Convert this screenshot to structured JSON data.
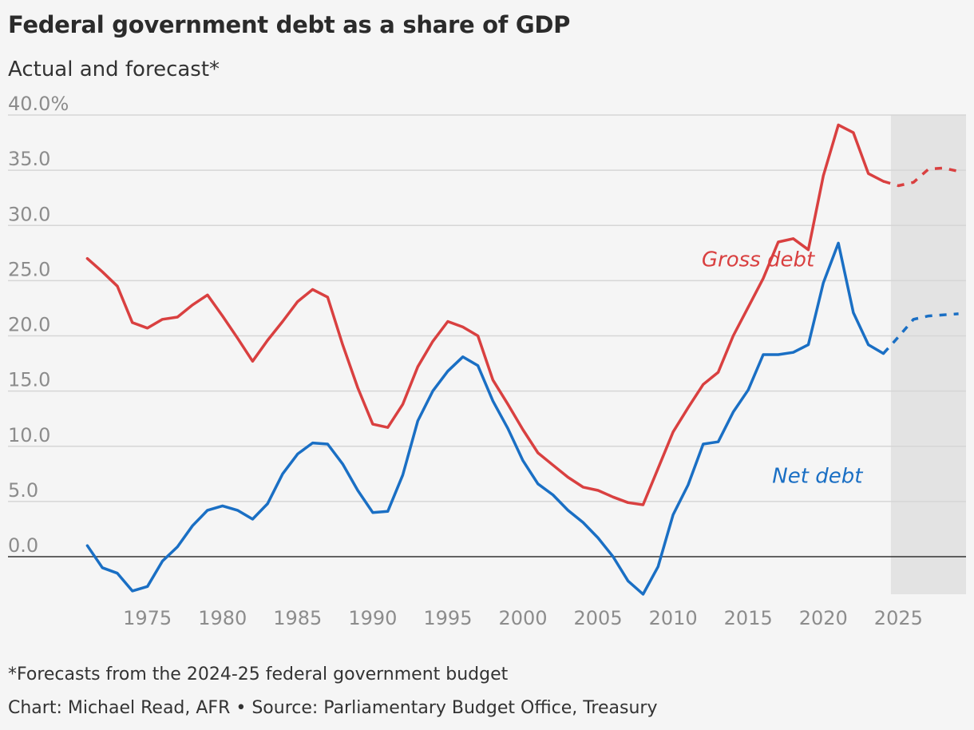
{
  "title": "Federal government debt as a share of GDP",
  "subtitle": "Actual and forecast*",
  "footnote": "*Forecasts from the 2024-25 federal government budget",
  "credit": "Chart: Michael Read, AFR • Source: Parliamentary Budget Office, Treasury",
  "colors": {
    "gross": "#d94040",
    "net": "#1a6fc4",
    "grid": "#d6d6d6",
    "forecast_shade": "#e3e3e3",
    "zero_line": "#333333",
    "tick": "#8c8c8c"
  },
  "chart_data": {
    "type": "line",
    "title": "Federal government debt as a share of GDP",
    "subtitle": "Actual and forecast*",
    "xlim": [
      1970.5,
      2029.5
    ],
    "ylim": [
      -3.5,
      40
    ],
    "x_ticks": [
      1975,
      1980,
      1985,
      1990,
      1995,
      2000,
      2005,
      2010,
      2015,
      2020,
      2025
    ],
    "x_tick_labels": [
      "1975",
      "1980",
      "1985",
      "1990",
      "1995",
      "2000",
      "2005",
      "2010",
      "2015",
      "2020",
      "2025"
    ],
    "y_ticks": [
      0,
      5,
      10,
      15,
      20,
      25,
      30,
      35,
      40
    ],
    "y_tick_labels": [
      "0.0",
      "5.0",
      "10.0",
      "15.0",
      "20.0",
      "25.0",
      "30.0",
      "35.0",
      "40.0%"
    ],
    "grid": true,
    "forecast_region": [
      2024.5,
      2029.5
    ],
    "series": [
      {
        "name": "Gross debt",
        "color": "#d94040",
        "label_position": [
          2011.9,
          26.3
        ],
        "actual": {
          "x": [
            1971,
            1972,
            1973,
            1974,
            1975,
            1976,
            1977,
            1978,
            1979,
            1980,
            1981,
            1982,
            1983,
            1984,
            1985,
            1986,
            1987,
            1988,
            1989,
            1990,
            1991,
            1992,
            1993,
            1994,
            1995,
            1996,
            1997,
            1998,
            1999,
            2000,
            2001,
            2002,
            2003,
            2004,
            2005,
            2006,
            2007,
            2008,
            2009,
            2010,
            2011,
            2012,
            2013,
            2014,
            2015,
            2016,
            2017,
            2018,
            2019,
            2020,
            2021,
            2022,
            2023,
            2024
          ],
          "y": [
            27.0,
            25.8,
            24.5,
            21.2,
            20.7,
            21.5,
            21.7,
            22.8,
            23.7,
            21.8,
            19.8,
            17.7,
            19.6,
            21.3,
            23.1,
            24.2,
            23.5,
            19.2,
            15.3,
            12.0,
            11.7,
            13.8,
            17.2,
            19.5,
            21.3,
            20.8,
            20.0,
            16.0,
            13.8,
            11.5,
            9.4,
            8.3,
            7.2,
            6.3,
            6.0,
            5.4,
            4.9,
            4.7,
            8.0,
            11.3,
            13.5,
            15.6,
            16.7,
            20.0,
            22.6,
            25.2,
            28.5,
            28.8,
            27.8,
            34.5,
            39.1,
            38.4,
            34.7,
            34.0
          ]
        },
        "forecast": {
          "x": [
            2024,
            2025,
            2026,
            2027,
            2028,
            2029
          ],
          "y": [
            34.0,
            33.6,
            33.9,
            35.1,
            35.2,
            34.9
          ]
        }
      },
      {
        "name": "Net debt",
        "color": "#1a6fc4",
        "label_position": [
          2016.6,
          6.7
        ],
        "actual": {
          "x": [
            1971,
            1972,
            1973,
            1974,
            1975,
            1976,
            1977,
            1978,
            1979,
            1980,
            1981,
            1982,
            1983,
            1984,
            1985,
            1986,
            1987,
            1988,
            1989,
            1990,
            1991,
            1992,
            1993,
            1994,
            1995,
            1996,
            1997,
            1998,
            1999,
            2000,
            2001,
            2002,
            2003,
            2004,
            2005,
            2006,
            2007,
            2008,
            2009,
            2010,
            2011,
            2012,
            2013,
            2014,
            2015,
            2016,
            2017,
            2018,
            2019,
            2020,
            2021,
            2022,
            2023,
            2024
          ],
          "y": [
            1.0,
            -1.0,
            -1.5,
            -3.1,
            -2.7,
            -0.4,
            0.9,
            2.8,
            4.2,
            4.6,
            4.2,
            3.4,
            4.8,
            7.5,
            9.3,
            10.3,
            10.2,
            8.4,
            6.0,
            4.0,
            4.1,
            7.4,
            12.3,
            15.0,
            16.8,
            18.1,
            17.3,
            14.1,
            11.6,
            8.7,
            6.6,
            5.6,
            4.2,
            3.1,
            1.7,
            0.0,
            -2.2,
            -3.4,
            -0.9,
            3.8,
            6.5,
            10.2,
            10.4,
            13.1,
            15.1,
            18.3,
            18.3,
            18.5,
            19.2,
            24.8,
            28.4,
            22.1,
            19.2,
            18.4
          ]
        },
        "forecast": {
          "x": [
            2024,
            2025,
            2026,
            2027,
            2028,
            2029
          ],
          "y": [
            18.4,
            19.9,
            21.5,
            21.8,
            21.9,
            22.0
          ]
        }
      }
    ]
  }
}
